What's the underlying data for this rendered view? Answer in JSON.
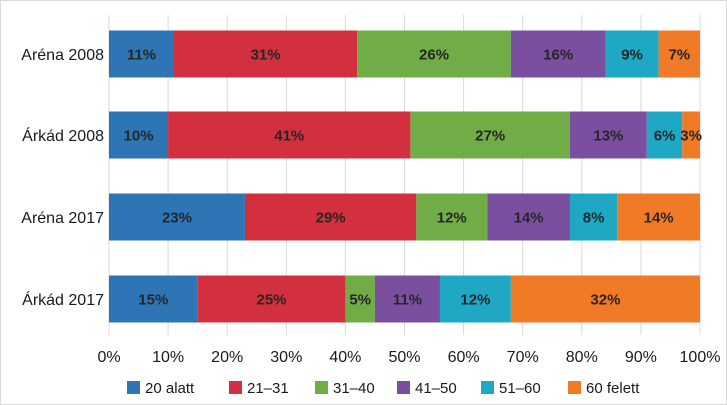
{
  "chart_data": {
    "type": "bar",
    "orientation": "horizontal",
    "stacked": true,
    "normalized": true,
    "title": "",
    "xlabel": "",
    "ylabel": "",
    "xlim": [
      0,
      100
    ],
    "ticks": [
      "0%",
      "10%",
      "20%",
      "30%",
      "40%",
      "50%",
      "60%",
      "70%",
      "80%",
      "90%",
      "100%"
    ],
    "categories": [
      "Aréna 2008",
      "Árkád 2008",
      "Aréna 2017",
      "Árkád 2017"
    ],
    "series": [
      {
        "name": "20 alatt",
        "color": "#2e75b6",
        "values": [
          11,
          10,
          23,
          15
        ]
      },
      {
        "name": "21–31",
        "color": "#d2303f",
        "values": [
          31,
          41,
          29,
          25
        ]
      },
      {
        "name": "31–40",
        "color": "#70ad47",
        "values": [
          26,
          27,
          12,
          5
        ]
      },
      {
        "name": "41–50",
        "color": "#7a4fa0",
        "values": [
          16,
          13,
          14,
          11
        ]
      },
      {
        "name": "51–60",
        "color": "#1fa8c4",
        "values": [
          9,
          6,
          8,
          12
        ]
      },
      {
        "name": "60 felett",
        "color": "#f07a25",
        "values": [
          7,
          3,
          14,
          32
        ]
      }
    ],
    "data_labels": true,
    "grid": true,
    "legend_position": "bottom"
  }
}
